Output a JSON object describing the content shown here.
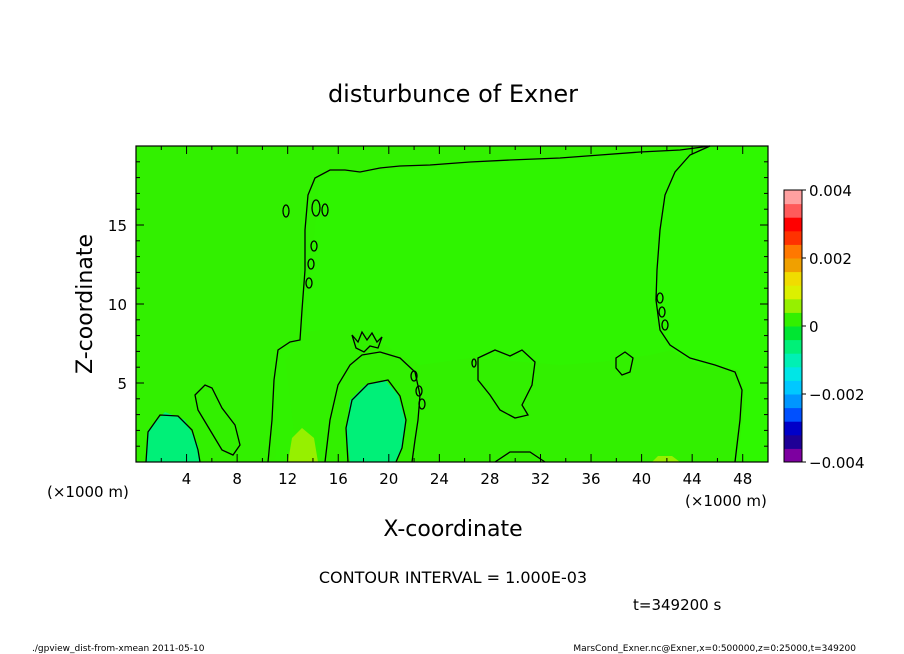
{
  "chart_data": {
    "type": "heatmap",
    "title": "disturbunce of Exner",
    "xlabel": "X-coordinate",
    "ylabel": "Z-coordinate",
    "x_unit_left": "(×1000 m)",
    "x_unit_right": "(×1000 m)",
    "xlim": [
      0,
      50
    ],
    "ylim": [
      0,
      20
    ],
    "x_ticks": [
      4,
      8,
      12,
      16,
      20,
      24,
      28,
      32,
      36,
      40,
      44,
      48
    ],
    "y_ticks": [
      5,
      10,
      15
    ],
    "colorbar": {
      "range": [
        -0.004,
        0.004
      ],
      "tick_labels": [
        "0.004",
        "0.002",
        "0",
        "−0.002",
        "−0.004"
      ],
      "tick_values": [
        0.004,
        0.002,
        0,
        -0.002,
        -0.004
      ],
      "colors": [
        "#7d00a0",
        "#1e0096",
        "#0000c8",
        "#0050ff",
        "#0096ff",
        "#00c8ff",
        "#00e6e6",
        "#00f0b4",
        "#00f078",
        "#00e632",
        "#32f000",
        "#96f000",
        "#dcf000",
        "#f0dc00",
        "#f0a000",
        "#ff7800",
        "#ff3200",
        "#ff0000",
        "#ff5a5a",
        "#ffa0a0"
      ]
    },
    "contour_interval_text": "CONTOUR INTERVAL = 1.000E-03",
    "time_text": "t=349200 s",
    "regions": [
      {
        "level": 0,
        "color": "#32f000",
        "note": "background"
      },
      {
        "level": 0.0004,
        "color": "#96f000"
      },
      {
        "level": -0.0004,
        "color": "#00f078"
      }
    ]
  },
  "footer": {
    "left": "./gpview_dist-from-xmean  2011-05-10",
    "right": "MarsCond_Exner.nc@Exner,x=0:500000,z=0:25000,t=349200"
  }
}
